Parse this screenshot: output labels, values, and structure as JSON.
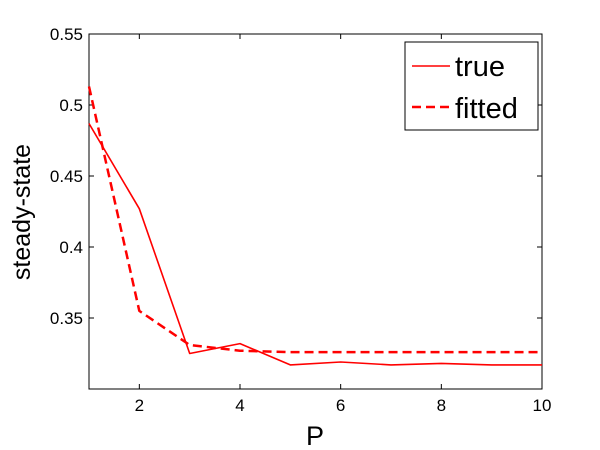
{
  "chart_data": {
    "type": "line",
    "xlabel": "P",
    "ylabel": "steady-state",
    "xlim": [
      1,
      10
    ],
    "ylim": [
      0.3,
      0.55
    ],
    "xticks": [
      2,
      4,
      6,
      8,
      10
    ],
    "yticks": [
      0.35,
      0.4,
      0.45,
      0.5,
      0.55
    ],
    "ytick_labels": [
      "0.35",
      "0.4",
      "0.45",
      "0.5",
      "0.55"
    ],
    "grid": false,
    "legend_position": "top-right",
    "series": [
      {
        "name": "true",
        "color": "#ff0000",
        "dash": "solid",
        "x": [
          1,
          2,
          3,
          4,
          5,
          6,
          7,
          8,
          9,
          10
        ],
        "y": [
          0.487,
          0.427,
          0.325,
          0.332,
          0.317,
          0.319,
          0.317,
          0.318,
          0.317,
          0.317
        ]
      },
      {
        "name": "fitted",
        "color": "#ff0000",
        "dash": "dashed",
        "x": [
          1,
          2,
          3,
          4,
          5,
          6,
          7,
          8,
          9,
          10
        ],
        "y": [
          0.513,
          0.355,
          0.331,
          0.327,
          0.326,
          0.326,
          0.326,
          0.326,
          0.326,
          0.326
        ]
      }
    ]
  }
}
